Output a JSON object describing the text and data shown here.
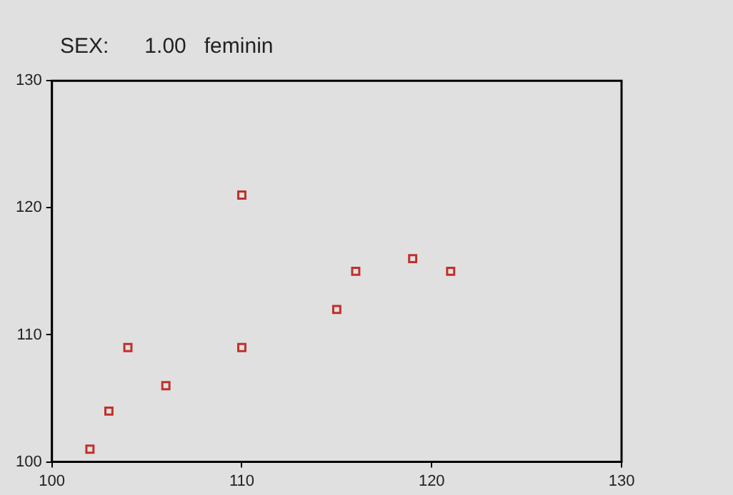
{
  "chart_data": {
    "type": "scatter",
    "title": "SEX:      1.00   feminin",
    "series": [
      {
        "color": "#c0302a",
        "x": [
          102,
          103,
          104,
          106,
          110,
          110,
          115,
          116,
          119,
          121
        ],
        "values": [
          101,
          104,
          109,
          106,
          121,
          109,
          112,
          115,
          116,
          115
        ]
      }
    ],
    "xlim": [
      100,
      130
    ],
    "xticks": [
      100,
      110,
      120,
      130
    ],
    "ylim": [
      100,
      130
    ],
    "yticks": [
      100,
      110,
      120,
      130
    ],
    "marker": "square",
    "grid": false,
    "legend": false
  }
}
